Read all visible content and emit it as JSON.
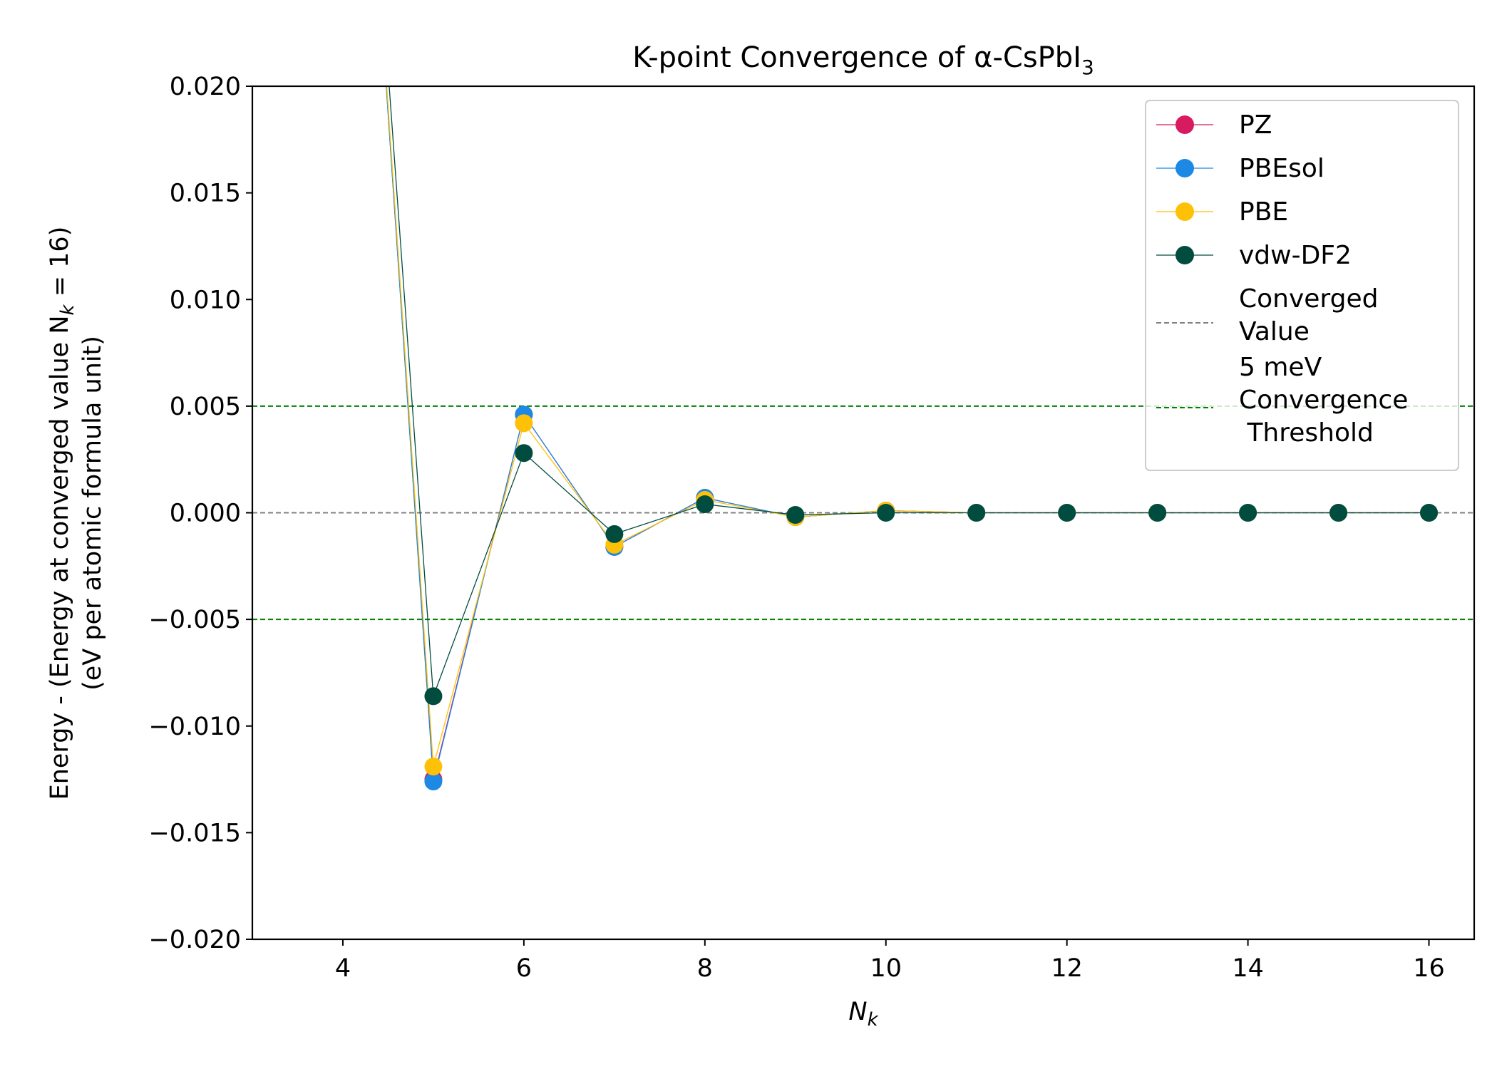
{
  "chart_data": {
    "type": "line",
    "title": "K-point Convergence of α-CsPbI",
    "title_subscript": "3",
    "xlabel_main": "N",
    "xlabel_sub": "k",
    "ylabel_line1_prefix": "Energy - (Energy at converged value N",
    "ylabel_line1_sub": "k",
    "ylabel_line1_suffix": " = 16)",
    "ylabel_line2": "(eV per atomic formula unit)",
    "xlim": [
      3,
      16.5
    ],
    "ylim": [
      -0.02,
      0.02
    ],
    "xticks": [
      4,
      6,
      8,
      10,
      12,
      14,
      16
    ],
    "yticks": [
      -0.02,
      -0.015,
      -0.01,
      -0.005,
      0.0,
      0.005,
      0.01,
      0.015,
      0.02
    ],
    "ytick_labels": [
      "−0.020",
      "−0.015",
      "−0.010",
      "−0.005",
      "0.000",
      "0.005",
      "0.010",
      "0.015",
      "0.020"
    ],
    "grid": false,
    "legend_position": "top-right",
    "x": [
      4,
      5,
      6,
      7,
      8,
      9,
      10,
      11,
      12,
      13,
      14,
      15,
      16
    ],
    "series": [
      {
        "name": "PZ",
        "color": "#D81B60",
        "values": [
          0.05,
          -0.0125,
          0.0046,
          -0.0016,
          0.0007,
          -0.0002,
          0.0001,
          0.0,
          0.0,
          0.0,
          0.0,
          0.0,
          0.0
        ]
      },
      {
        "name": "PBEsol",
        "color": "#1E88E5",
        "values": [
          0.05,
          -0.0126,
          0.0046,
          -0.0016,
          0.0007,
          -0.0002,
          0.0001,
          0.0,
          0.0,
          0.0,
          0.0,
          0.0,
          0.0
        ]
      },
      {
        "name": "PBE",
        "color": "#FFC107",
        "values": [
          0.05,
          -0.0119,
          0.0042,
          -0.0015,
          0.0006,
          -0.0002,
          0.0001,
          0.0,
          0.0,
          0.0,
          0.0,
          0.0,
          0.0
        ]
      },
      {
        "name": "vdw-DF2",
        "color": "#004D40",
        "values": [
          0.05,
          -0.0086,
          0.0028,
          -0.001,
          0.0004,
          -0.0001,
          0.0,
          0.0,
          0.0,
          0.0,
          0.0,
          0.0,
          0.0
        ]
      }
    ],
    "reference_lines": [
      {
        "name": "Converged Value",
        "legend_lines": [
          "Converged",
          "Value"
        ],
        "y": [
          0.0
        ],
        "color": "#808080"
      },
      {
        "name": "5 meV Convergence Threshold",
        "legend_lines": [
          "5 meV",
          "Convergence",
          " Threshold"
        ],
        "y": [
          0.005,
          -0.005
        ],
        "color": "#008000"
      }
    ]
  }
}
